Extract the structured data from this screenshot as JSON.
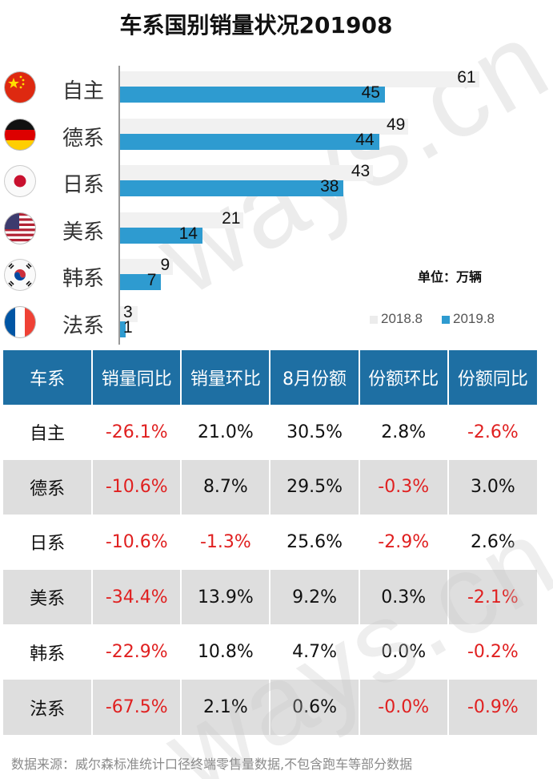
{
  "title": "车系国别销量状况201908",
  "unit_label": "单位：万辆",
  "watermark": "ways.cn",
  "chart_data": {
    "type": "bar",
    "orientation": "horizontal",
    "title": "车系国别销量状况201908",
    "categories": [
      "自主",
      "德系",
      "日系",
      "美系",
      "韩系",
      "法系"
    ],
    "series": [
      {
        "name": "2018.8",
        "color": "#f1f1f1",
        "values": [
          61,
          49,
          43,
          21,
          9,
          3
        ]
      },
      {
        "name": "2019.8",
        "color": "#2e9bd0",
        "values": [
          45,
          44,
          38,
          14,
          7,
          1
        ]
      }
    ],
    "xlim": [
      0,
      65
    ],
    "unit": "单位：万辆",
    "legend_position": "bottom-right"
  },
  "flags": [
    "china-flag-icon",
    "germany-flag-icon",
    "japan-flag-icon",
    "usa-flag-icon",
    "korea-flag-icon",
    "france-flag-icon"
  ],
  "legend": [
    {
      "label": "2018.8",
      "color": "#f1f1f1"
    },
    {
      "label": "2019.8",
      "color": "#2e9bd0"
    }
  ],
  "table": {
    "headers": [
      "车系",
      "销量同比",
      "销量环比",
      "8月份额",
      "份额环比",
      "份额同比"
    ],
    "rows": [
      [
        "自主",
        "-26.1%",
        "21.0%",
        "30.5%",
        "2.8%",
        "-2.6%"
      ],
      [
        "德系",
        "-10.6%",
        "8.7%",
        "29.5%",
        "-0.3%",
        "3.0%"
      ],
      [
        "日系",
        "-10.6%",
        "-1.3%",
        "25.6%",
        "-2.9%",
        "2.6%"
      ],
      [
        "美系",
        "-34.4%",
        "13.9%",
        "9.2%",
        "0.3%",
        "-2.1%"
      ],
      [
        "韩系",
        "-22.9%",
        "10.8%",
        "4.7%",
        "0.0%",
        "-0.2%"
      ],
      [
        "法系",
        "-67.5%",
        "2.1%",
        "0.6%",
        "-0.0%",
        "-0.9%"
      ]
    ]
  },
  "colors": {
    "header_bg": "#1e6fa3",
    "negative": "#e02020",
    "alt_row": "#dedede"
  },
  "source": "数据来源：威尔森标准统计口径终端零售量数据,不包含跑车等部分数据"
}
